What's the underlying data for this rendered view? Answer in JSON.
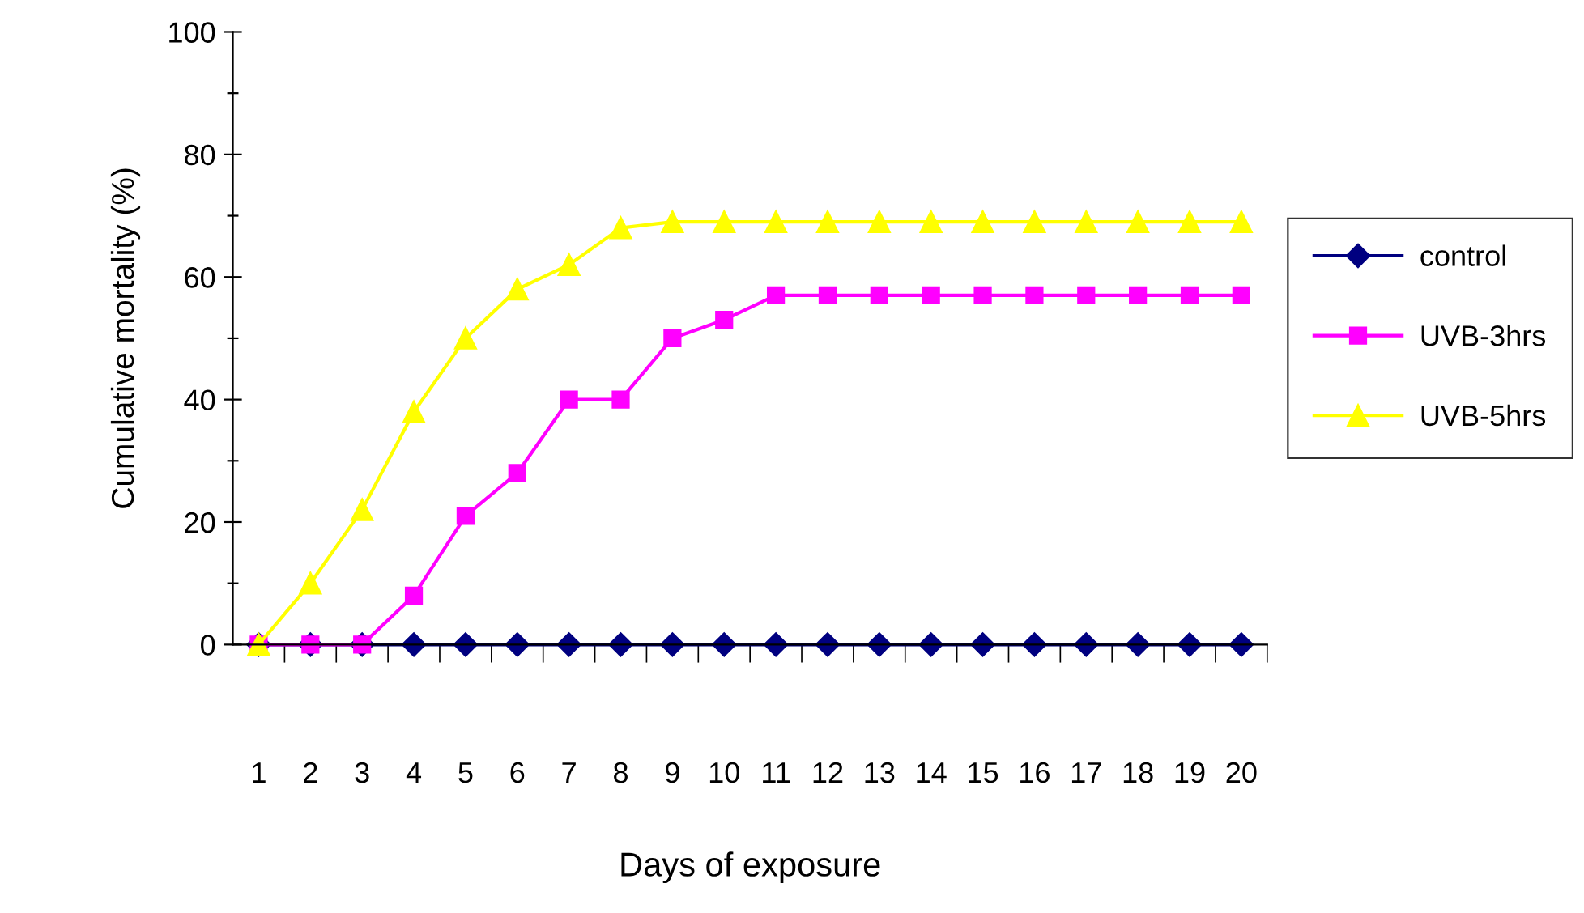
{
  "chart_data": {
    "type": "line",
    "xlabel": "Days of exposure",
    "ylabel": "Cumulative mortality (%)",
    "categories": [
      "1",
      "2",
      "3",
      "4",
      "5",
      "6",
      "7",
      "8",
      "9",
      "10",
      "11",
      "12",
      "13",
      "14",
      "15",
      "16",
      "17",
      "18",
      "19",
      "20"
    ],
    "series": [
      {
        "name": "control",
        "color": "#000080",
        "marker": "diamond",
        "values": [
          0,
          0,
          0,
          0,
          0,
          0,
          0,
          0,
          0,
          0,
          0,
          0,
          0,
          0,
          0,
          0,
          0,
          0,
          0,
          0
        ]
      },
      {
        "name": "UVB-3hrs",
        "color": "#ff00ff",
        "marker": "square",
        "values": [
          0,
          0,
          0,
          8,
          21,
          28,
          40,
          40,
          50,
          53,
          57,
          57,
          57,
          57,
          57,
          57,
          57,
          57,
          57,
          57
        ]
      },
      {
        "name": "UVB-5hrs",
        "color": "#ffff00",
        "marker": "triangle",
        "values": [
          0,
          10,
          22,
          38,
          50,
          58,
          62,
          68,
          69,
          69,
          69,
          69,
          69,
          69,
          69,
          69,
          69,
          69,
          69,
          69
        ]
      }
    ],
    "ylim": [
      0,
      100
    ],
    "yticks": [
      0,
      {
        "value": 10,
        "label": null
      },
      20,
      {
        "value": 30,
        "label": null
      },
      40,
      {
        "value": 50,
        "label": null
      },
      60,
      {
        "value": 70,
        "label": null
      },
      80,
      {
        "value": 90,
        "label": null
      },
      100
    ],
    "grid": false,
    "legend": "right",
    "line_style": "solid"
  }
}
